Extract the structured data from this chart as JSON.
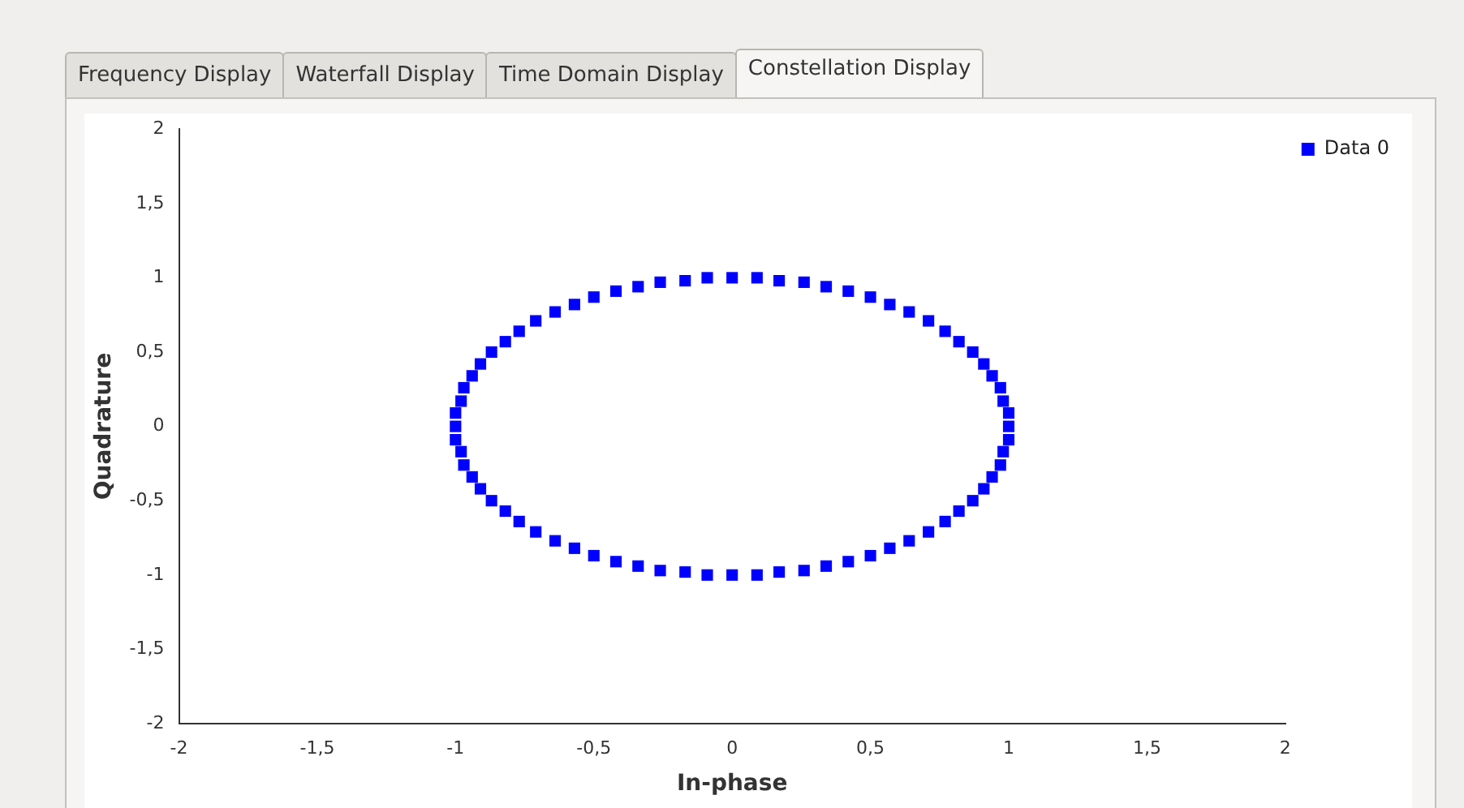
{
  "chart_data": {
    "type": "scatter",
    "xlabel": "In-phase",
    "ylabel": "Quadrature",
    "annotations": [
      "Frequency Display",
      "Waterfall Display",
      "Time Domain Display",
      "Constellation Display"
    ],
    "xlim": [
      -2,
      2
    ],
    "ylim": [
      -2,
      2
    ],
    "xticks": [
      -2,
      {
        "value": -1.5,
        "label": "-1,5"
      },
      -1,
      {
        "value": -0.5,
        "label": "-0,5"
      },
      0,
      {
        "value": 0.5,
        "label": "0,5"
      },
      1,
      {
        "value": 1.5,
        "label": "1,5"
      },
      2
    ],
    "yticks": [
      -2,
      {
        "value": -1.5,
        "label": "-1,5"
      },
      -1,
      {
        "value": -0.5,
        "label": "-0,5"
      },
      0,
      {
        "value": 0.5,
        "label": "0,5"
      },
      1,
      {
        "value": 1.5,
        "label": "1,5"
      },
      2
    ],
    "grid": false,
    "legend": "top right",
    "marker": "square",
    "series": [
      {
        "name": "Data 0",
        "color": "#0000ff",
        "x": [
          1,
          1,
          0.98,
          0.97,
          0.94,
          0.91,
          0.87,
          0.82,
          0.77,
          0.71,
          0.64,
          0.57,
          0.5,
          0.42,
          0.34,
          0.26,
          0.17,
          0.09,
          0,
          -0.09,
          -0.17,
          -0.26,
          -0.34,
          -0.42,
          -0.5,
          -0.57,
          -0.64,
          -0.71,
          -0.77,
          -0.82,
          -0.87,
          -0.91,
          -0.94,
          -0.97,
          -0.98,
          -1,
          -1,
          -1,
          -0.98,
          -0.97,
          -0.94,
          -0.91,
          -0.87,
          -0.82,
          -0.77,
          -0.71,
          -0.64,
          -0.57,
          -0.5,
          -0.42,
          -0.34,
          -0.26,
          -0.17,
          -0.09,
          0,
          0.09,
          0.17,
          0.26,
          0.34,
          0.42,
          0.5,
          0.57,
          0.64,
          0.71,
          0.77,
          0.82,
          0.87,
          0.91,
          0.94,
          0.97,
          0.98,
          1
        ],
        "values": [
          0,
          0.09,
          0.17,
          0.26,
          0.34,
          0.42,
          0.5,
          0.57,
          0.64,
          0.71,
          0.77,
          0.82,
          0.87,
          0.91,
          0.94,
          0.97,
          0.98,
          1,
          1,
          1,
          0.98,
          0.97,
          0.94,
          0.91,
          0.87,
          0.82,
          0.77,
          0.71,
          0.64,
          0.57,
          0.5,
          0.42,
          0.34,
          0.26,
          0.17,
          0.09,
          0,
          -0.09,
          -0.17,
          -0.26,
          -0.34,
          -0.42,
          -0.5,
          -0.57,
          -0.64,
          -0.71,
          -0.77,
          -0.82,
          -0.87,
          -0.91,
          -0.94,
          -0.97,
          -0.98,
          -1,
          -1,
          -1,
          -0.98,
          -0.97,
          -0.94,
          -0.91,
          -0.87,
          -0.82,
          -0.77,
          -0.71,
          -0.64,
          -0.57,
          -0.5,
          -0.42,
          -0.34,
          -0.26,
          -0.17,
          -0.09
        ]
      }
    ]
  }
}
